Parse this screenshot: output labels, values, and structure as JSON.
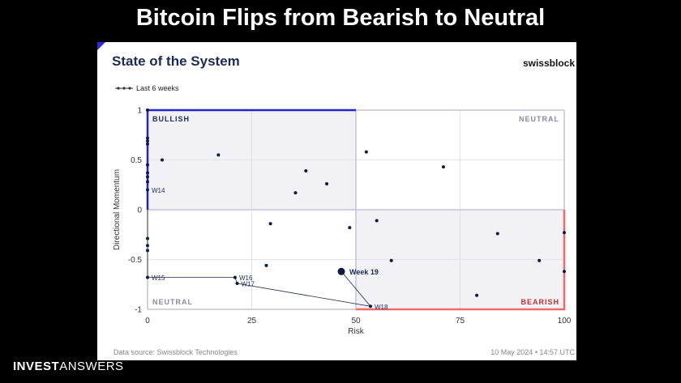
{
  "headline": "Bitcoin Flips from Bearish to Neutral",
  "footer": {
    "brand_bold": "INVEST",
    "brand_light": "ANSWERS"
  },
  "card": {
    "title": "State of the System",
    "brand": "swissblock",
    "legend": "Last 6 weeks",
    "source": "Data source: Swissblock Technologies",
    "timestamp": "10 May 2024 • 14:57 UTC"
  },
  "colors": {
    "bullish": "#2424d6",
    "bearish": "#f06a6a",
    "point": "#0d1940",
    "shade": "#f2f2f6",
    "grid": "#dcdce8"
  },
  "chart_data": {
    "type": "scatter",
    "xlabel": "Risk",
    "ylabel": "Directional Momentum",
    "xlim": [
      0,
      100
    ],
    "ylim": [
      -1,
      1
    ],
    "x_ticks": [
      "0",
      "25",
      "50",
      "75",
      "100"
    ],
    "y_ticks": [
      "1",
      "0.5",
      "0",
      "-0.5",
      "-1"
    ],
    "grid": true,
    "quadrants": [
      "BULLISH",
      "NEUTRAL",
      "NEUTRAL",
      "BEARISH"
    ],
    "points": [
      {
        "x": 0,
        "y": 1
      },
      {
        "x": 0,
        "y": 0.72
      },
      {
        "x": 0,
        "y": 0.69
      },
      {
        "x": 0,
        "y": 0.66
      },
      {
        "x": 0,
        "y": 0.45
      },
      {
        "x": 0,
        "y": 0.37
      },
      {
        "x": 0,
        "y": 0.33
      },
      {
        "x": 0,
        "y": 0.28
      },
      {
        "x": 3.5,
        "y": 0.5
      },
      {
        "x": 17,
        "y": 0.55
      },
      {
        "x": 35.5,
        "y": 0.17
      },
      {
        "x": 38,
        "y": 0.39
      },
      {
        "x": 43,
        "y": 0.26
      },
      {
        "x": 52.5,
        "y": 0.58
      },
      {
        "x": 71,
        "y": 0.43
      },
      {
        "x": 0,
        "y": -0.29
      },
      {
        "x": 0,
        "y": -0.36
      },
      {
        "x": 0,
        "y": -0.41
      },
      {
        "x": 29.5,
        "y": -0.14
      },
      {
        "x": 28.5,
        "y": -0.56
      },
      {
        "x": 48.5,
        "y": -0.18
      },
      {
        "x": 55,
        "y": -0.11
      },
      {
        "x": 58.5,
        "y": -0.51
      },
      {
        "x": 79,
        "y": -0.86
      },
      {
        "x": 84,
        "y": -0.24
      },
      {
        "x": 94,
        "y": -0.51
      },
      {
        "x": 100,
        "y": -0.23
      },
      {
        "x": 100,
        "y": -0.62
      }
    ],
    "trail": [
      {
        "label": "W14",
        "x": 0,
        "y": 0.2
      },
      {
        "label": "W15",
        "x": 0,
        "y": -0.68
      },
      {
        "label": "W16",
        "x": 21,
        "y": -0.68
      },
      {
        "label": "W17",
        "x": 21.5,
        "y": -0.74
      },
      {
        "label": "W18",
        "x": 53.5,
        "y": -0.97
      }
    ],
    "current": {
      "label": "Week 19",
      "x": 46.5,
      "y": -0.62
    }
  }
}
